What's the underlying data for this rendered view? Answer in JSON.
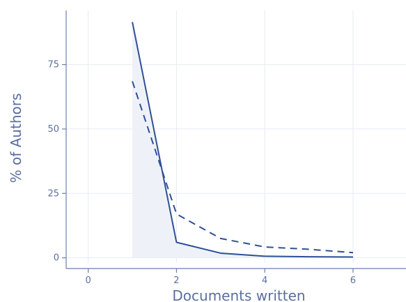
{
  "chart_data": {
    "type": "line",
    "xlabel": "Documents written",
    "ylabel": "% of Authors",
    "xlim": [
      -0.5,
      7.2
    ],
    "ylim": [
      -2,
      96
    ],
    "xticks": [
      0,
      2,
      4,
      6
    ],
    "yticks": [
      0,
      25,
      50,
      75
    ],
    "grid": true,
    "series": [
      {
        "style": "solid",
        "x": [
          1,
          2,
          3,
          4,
          5,
          6
        ],
        "y": [
          91.5,
          6,
          1.8,
          0.6,
          0.4,
          0.3
        ],
        "shaded_area": true
      },
      {
        "style": "dashed",
        "x": [
          1,
          2,
          3,
          4,
          5,
          6
        ],
        "y": [
          68.5,
          17,
          7.5,
          4.2,
          3.3,
          2
        ]
      }
    ],
    "colors": {
      "line": "#2e4f98",
      "fill": "#eef2f8",
      "grid": "#e6ebf3",
      "axis": "#6a7fae",
      "text": "#5b6f9e"
    }
  }
}
